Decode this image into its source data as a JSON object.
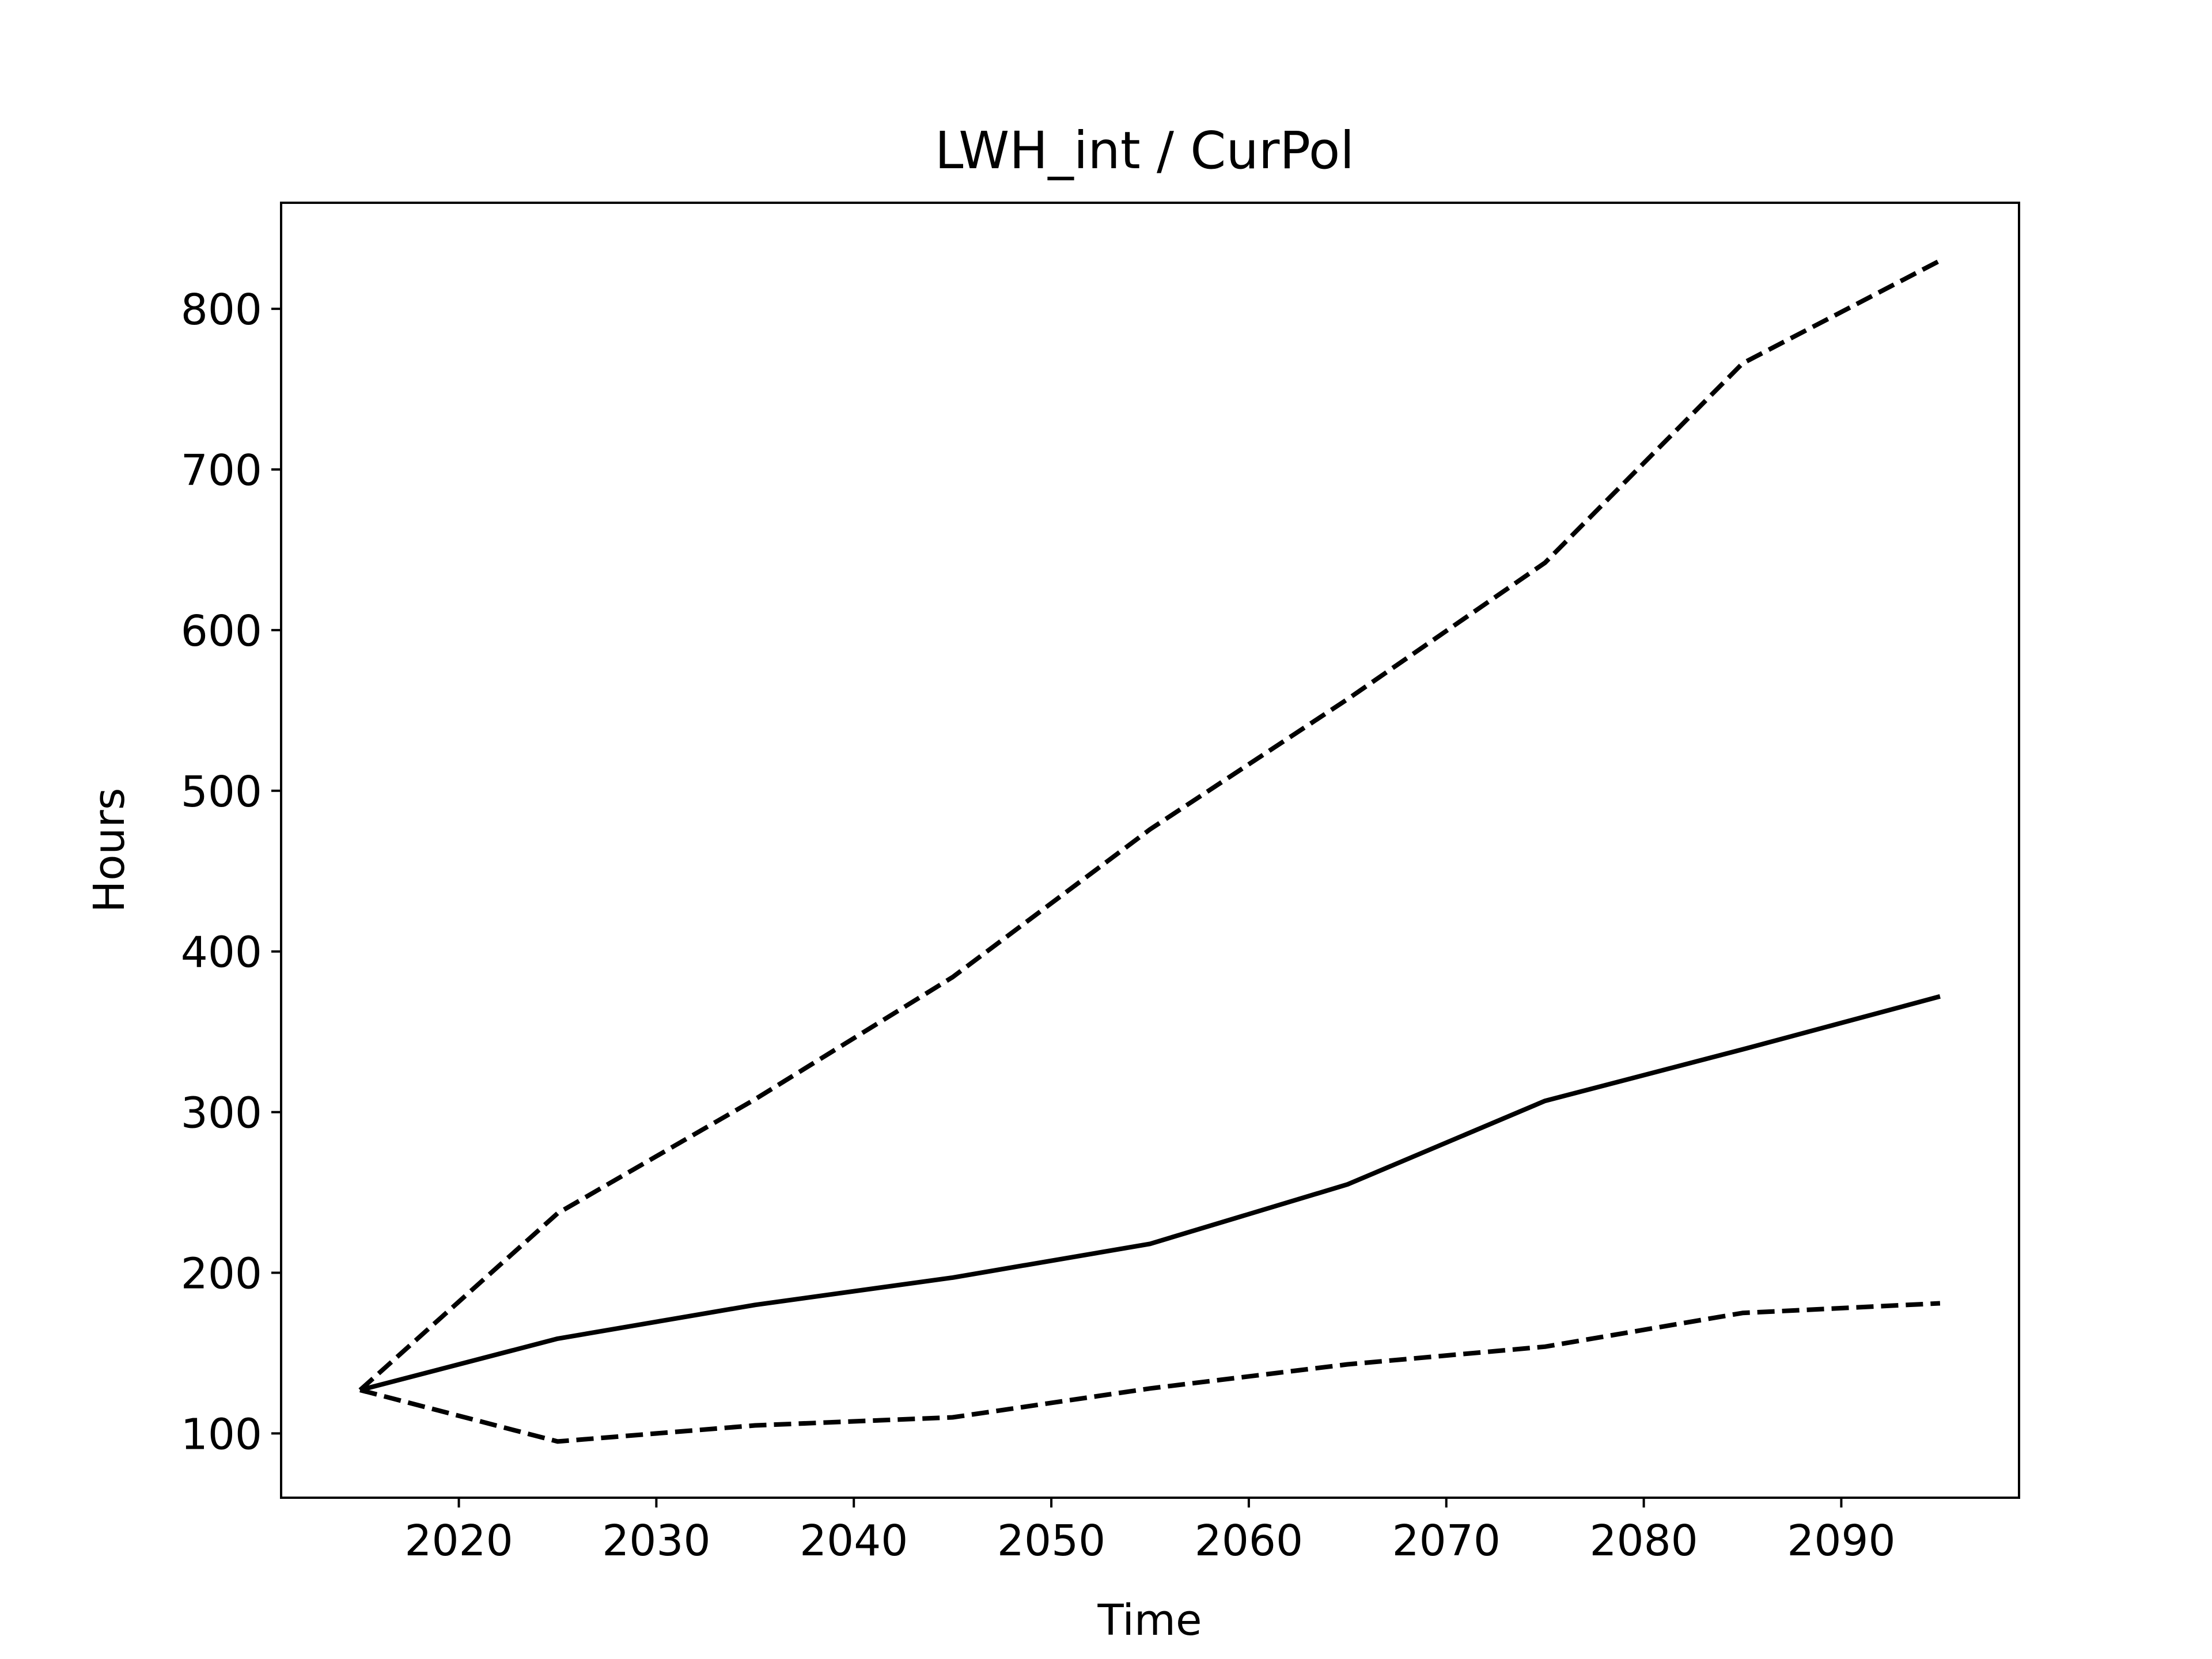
{
  "chart_data": {
    "type": "line",
    "title": "LWH_int / CurPol",
    "xlabel": "Time",
    "ylabel": "Hours",
    "xlim": [
      2011,
      2099
    ],
    "ylim": [
      60,
      866
    ],
    "xticks": [
      2020,
      2030,
      2040,
      2050,
      2060,
      2070,
      2080,
      2090
    ],
    "yticks": [
      100,
      200,
      300,
      400,
      500,
      600,
      700,
      800
    ],
    "x": [
      2015,
      2025,
      2035,
      2045,
      2055,
      2065,
      2075,
      2085,
      2095
    ],
    "grid": false,
    "legend": "none",
    "series": [
      {
        "style": "dashed",
        "color": "#000000",
        "values": [
          127,
          237,
          308,
          384,
          476,
          557,
          642,
          766,
          830
        ]
      },
      {
        "style": "solid",
        "color": "#000000",
        "values": [
          127,
          159,
          180,
          197,
          218,
          255,
          307,
          339,
          372
        ]
      },
      {
        "style": "dashed",
        "color": "#000000",
        "values": [
          127,
          95,
          105,
          110,
          128,
          143,
          154,
          175,
          181
        ]
      }
    ]
  }
}
